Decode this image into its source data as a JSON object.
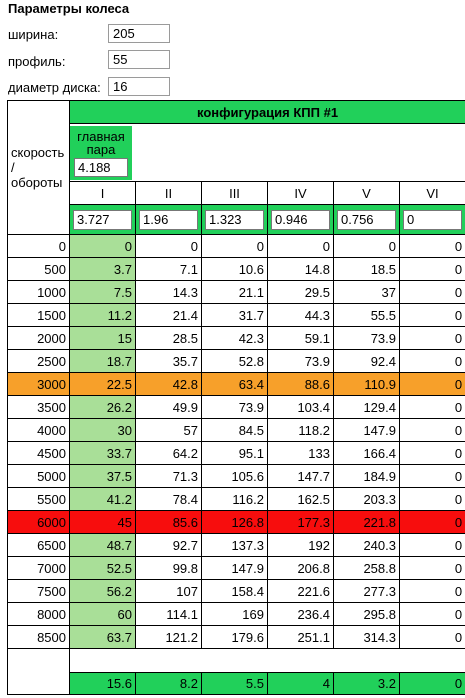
{
  "params": {
    "title": "Параметры колеса",
    "width_label": "ширина:",
    "width_value": "205",
    "profile_label": "профиль:",
    "profile_value": "55",
    "disk_label": "диаметр диска:",
    "disk_value": "16"
  },
  "table": {
    "config_title": "конфигурация КПП #1",
    "speed_label": "скорость / обороты",
    "main_pair_label": "главная пара",
    "main_pair_value": "4.188",
    "gears": [
      "I",
      "II",
      "III",
      "IV",
      "V",
      "VI"
    ],
    "ratios": [
      "3.727",
      "1.96",
      "1.323",
      "0.946",
      "0.756",
      "0"
    ],
    "rows": [
      {
        "rpm": "0",
        "v": [
          "0",
          "0",
          "0",
          "0",
          "0",
          "0"
        ],
        "hl": ""
      },
      {
        "rpm": "500",
        "v": [
          "3.7",
          "7.1",
          "10.6",
          "14.8",
          "18.5",
          "0"
        ],
        "hl": ""
      },
      {
        "rpm": "1000",
        "v": [
          "7.5",
          "14.3",
          "21.1",
          "29.5",
          "37",
          "0"
        ],
        "hl": ""
      },
      {
        "rpm": "1500",
        "v": [
          "11.2",
          "21.4",
          "31.7",
          "44.3",
          "55.5",
          "0"
        ],
        "hl": ""
      },
      {
        "rpm": "2000",
        "v": [
          "15",
          "28.5",
          "42.3",
          "59.1",
          "73.9",
          "0"
        ],
        "hl": ""
      },
      {
        "rpm": "2500",
        "v": [
          "18.7",
          "35.7",
          "52.8",
          "73.9",
          "92.4",
          "0"
        ],
        "hl": ""
      },
      {
        "rpm": "3000",
        "v": [
          "22.5",
          "42.8",
          "63.4",
          "88.6",
          "110.9",
          "0"
        ],
        "hl": "orange"
      },
      {
        "rpm": "3500",
        "v": [
          "26.2",
          "49.9",
          "73.9",
          "103.4",
          "129.4",
          "0"
        ],
        "hl": ""
      },
      {
        "rpm": "4000",
        "v": [
          "30",
          "57",
          "84.5",
          "118.2",
          "147.9",
          "0"
        ],
        "hl": ""
      },
      {
        "rpm": "4500",
        "v": [
          "33.7",
          "64.2",
          "95.1",
          "133",
          "166.4",
          "0"
        ],
        "hl": ""
      },
      {
        "rpm": "5000",
        "v": [
          "37.5",
          "71.3",
          "105.6",
          "147.7",
          "184.9",
          "0"
        ],
        "hl": ""
      },
      {
        "rpm": "5500",
        "v": [
          "41.2",
          "78.4",
          "116.2",
          "162.5",
          "203.3",
          "0"
        ],
        "hl": ""
      },
      {
        "rpm": "6000",
        "v": [
          "45",
          "85.6",
          "126.8",
          "177.3",
          "221.8",
          "0"
        ],
        "hl": "red"
      },
      {
        "rpm": "6500",
        "v": [
          "48.7",
          "92.7",
          "137.3",
          "192",
          "240.3",
          "0"
        ],
        "hl": ""
      },
      {
        "rpm": "7000",
        "v": [
          "52.5",
          "99.8",
          "147.9",
          "206.8",
          "258.8",
          "0"
        ],
        "hl": ""
      },
      {
        "rpm": "7500",
        "v": [
          "56.2",
          "107",
          "158.4",
          "221.6",
          "277.3",
          "0"
        ],
        "hl": ""
      },
      {
        "rpm": "8000",
        "v": [
          "60",
          "114.1",
          "169",
          "236.4",
          "295.8",
          "0"
        ],
        "hl": ""
      },
      {
        "rpm": "8500",
        "v": [
          "63.7",
          "121.2",
          "179.6",
          "251.1",
          "314.3",
          "0"
        ],
        "hl": ""
      }
    ],
    "totals": [
      "15.6",
      "8.2",
      "5.5",
      "4",
      "3.2",
      "0"
    ]
  },
  "colors": {
    "green": "#21d05a",
    "pale_green": "#a9df98",
    "orange": "#f7a02a",
    "red": "#f70d0d"
  }
}
